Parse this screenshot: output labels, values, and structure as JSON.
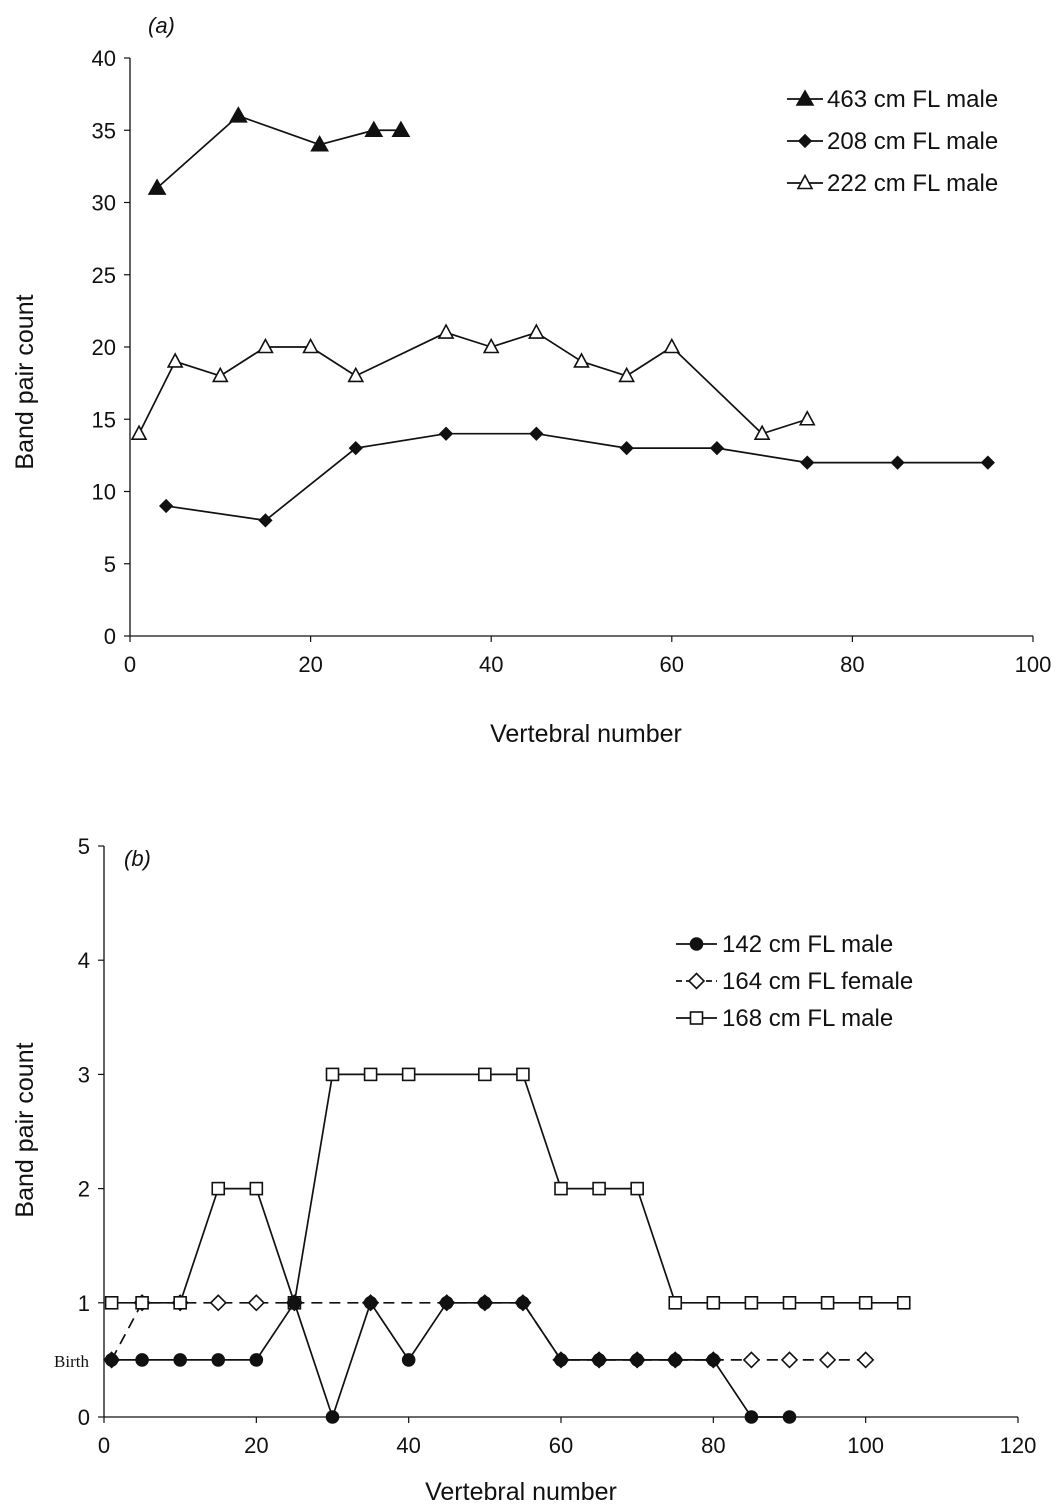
{
  "chart_data": [
    {
      "type": "line",
      "panel_label": "(a)",
      "xlabel": "Vertebral number",
      "ylabel": "Band pair count",
      "xlim": [
        0,
        100
      ],
      "ylim": [
        0,
        40
      ],
      "xticks": [
        0,
        20,
        40,
        60,
        80,
        100
      ],
      "yticks": [
        0,
        5,
        10,
        15,
        20,
        25,
        30,
        35,
        40
      ],
      "grid": false,
      "legend_position": "top-right",
      "series": [
        {
          "name": "463 cm FL male",
          "marker": "filled-triangle",
          "line": "solid",
          "x": [
            3,
            12,
            21,
            27,
            30
          ],
          "y": [
            31,
            36,
            34,
            35,
            35
          ]
        },
        {
          "name": "208 cm FL male",
          "marker": "filled-diamond-small",
          "line": "solid",
          "x": [
            4,
            15,
            25,
            35,
            45,
            55,
            65,
            75,
            85,
            95
          ],
          "y": [
            9,
            8,
            13,
            14,
            14,
            13,
            13,
            12,
            12,
            12
          ]
        },
        {
          "name": "222 cm FL male",
          "marker": "open-triangle",
          "line": "solid",
          "x": [
            1,
            5,
            10,
            15,
            20,
            25,
            35,
            40,
            45,
            50,
            55,
            60,
            70,
            75
          ],
          "y": [
            14,
            19,
            18,
            20,
            20,
            18,
            21,
            20,
            21,
            19,
            18,
            20,
            14,
            15
          ]
        }
      ]
    },
    {
      "type": "line",
      "panel_label": "(b)",
      "xlabel": "Vertebral number",
      "ylabel": "Band pair count",
      "xlim": [
        0,
        120
      ],
      "ylim": [
        0,
        5
      ],
      "xticks": [
        0,
        20,
        40,
        60,
        80,
        100,
        120
      ],
      "yticks": [
        0,
        1,
        2,
        3,
        4,
        5
      ],
      "grid": false,
      "legend_position": "top-right",
      "annotations": [
        {
          "text": "Birth",
          "y": 0.5
        }
      ],
      "series": [
        {
          "name": "142 cm FL male",
          "marker": "filled-circle",
          "line": "solid",
          "x": [
            1,
            5,
            10,
            15,
            20,
            25,
            30,
            35,
            40,
            45,
            50,
            55,
            60,
            65,
            70,
            75,
            80,
            85,
            90
          ],
          "y": [
            0.5,
            0.5,
            0.5,
            0.5,
            0.5,
            1,
            0,
            1,
            0.5,
            1,
            1,
            1,
            0.5,
            0.5,
            0.5,
            0.5,
            0.5,
            0,
            0
          ]
        },
        {
          "name": "164 cm FL female",
          "marker": "open-diamond",
          "line": "dashed",
          "x": [
            1,
            5,
            10,
            15,
            20,
            25,
            35,
            45,
            50,
            55,
            60,
            65,
            70,
            75,
            80,
            85,
            90,
            95,
            100
          ],
          "y": [
            0.5,
            1,
            1,
            1,
            1,
            1,
            1,
            1,
            1,
            1,
            0.5,
            0.5,
            0.5,
            0.5,
            0.5,
            0.5,
            0.5,
            0.5,
            0.5
          ]
        },
        {
          "name": "168 cm FL male",
          "marker": "open-square",
          "line": "solid",
          "x": [
            1,
            5,
            10,
            15,
            20,
            25,
            30,
            35,
            40,
            50,
            55,
            60,
            65,
            70,
            75,
            80,
            85,
            90,
            95,
            100,
            105
          ],
          "y": [
            1,
            1,
            1,
            2,
            2,
            1,
            3,
            3,
            3,
            3,
            3,
            2,
            2,
            2,
            1,
            1,
            1,
            1,
            1,
            1,
            1
          ]
        }
      ]
    }
  ],
  "colors": {
    "ink": "#111111",
    "marker_open_fill": "#ffffff",
    "background": "#ffffff"
  }
}
